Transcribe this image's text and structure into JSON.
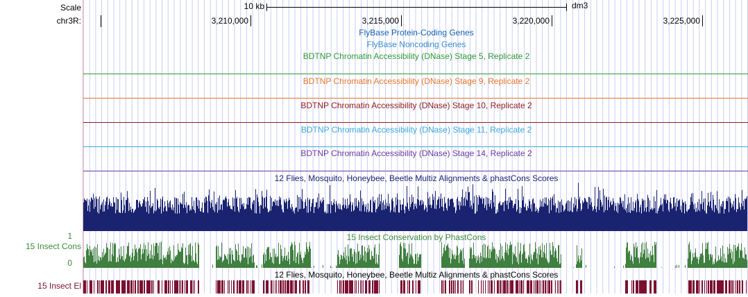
{
  "header": {
    "scale_label": "Scale",
    "scale_value": "10 kb",
    "assembly": "dm3",
    "chrom_label": "chr3R:",
    "positions": [
      "3,210,000",
      "3,215,000",
      "3,220,000",
      "3,225,000"
    ]
  },
  "tracks": [
    {
      "label": "FlyBase Protein-Coding Genes"
    },
    {
      "label": "FlyBase Noncoding Genes"
    },
    {
      "label": "BDTNP Chromatin Accessibility (DNase) Stage 5, Replicate 2"
    },
    {
      "label": "BDTNP Chromatin Accessibility (DNase) Stage 9, Replicate 2"
    },
    {
      "label": "BDTNP Chromatin Accessibility (DNase) Stage 10, Replicate 2"
    },
    {
      "label": "BDTNP Chromatin Accessibility (DNase) Stage 11, Replicate 2"
    },
    {
      "label": "BDTNP Chromatin Accessibility (DNase) Stage 14, Replicate 2"
    },
    {
      "label": "12 Flies, Mosquito, Honeybee, Beetle Multiz Alignments & phastCons Scores"
    },
    {
      "label": "15 Insect Conservation by PhastCons"
    },
    {
      "label": "12 Flies, Mosquito, Honeybee, Beetle Multiz Alignments & phastCons Scores"
    }
  ],
  "side_labels": {
    "cons": "15 Insect Cons",
    "cons_max": "1",
    "cons_min": "0",
    "elements": "15 Insect El"
  }
}
